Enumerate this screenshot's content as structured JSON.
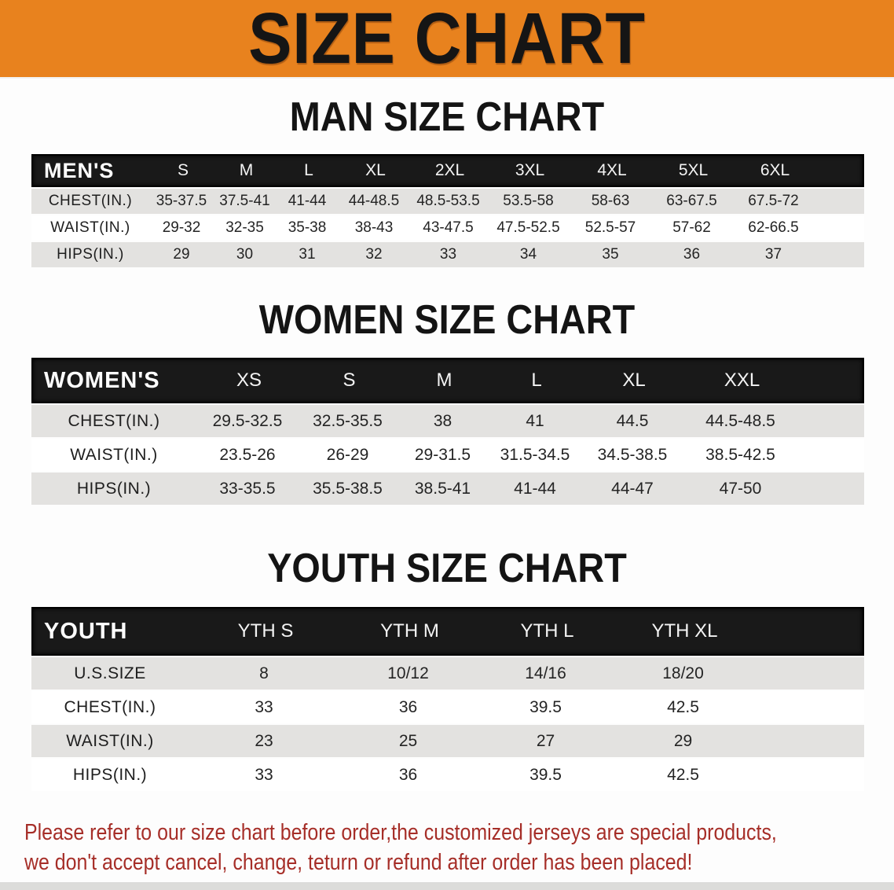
{
  "banner": {
    "title": "SIZE CHART"
  },
  "colors": {
    "banner_bg": "#E8821E",
    "table_header_bg": "#191919",
    "row_stripe": "#E3E2E0",
    "disclaimer_text": "#A62E28"
  },
  "tables": {
    "men": {
      "heading": "MAN SIZE CHART",
      "label": "MEN'S",
      "sizes": [
        "S",
        "M",
        "L",
        "XL",
        "2XL",
        "3XL",
        "4XL",
        "5XL",
        "6XL"
      ],
      "rows": [
        {
          "label": "CHEST(IN.)",
          "values": [
            "35-37.5",
            "37.5-41",
            "41-44",
            "44-48.5",
            "48.5-53.5",
            "53.5-58",
            "58-63",
            "63-67.5",
            "67.5-72"
          ]
        },
        {
          "label": "WAIST(IN.)",
          "values": [
            "29-32",
            "32-35",
            "35-38",
            "38-43",
            "43-47.5",
            "47.5-52.5",
            "52.5-57",
            "57-62",
            "62-66.5"
          ]
        },
        {
          "label": "HIPS(IN.)",
          "values": [
            "29",
            "30",
            "31",
            "32",
            "33",
            "34",
            "35",
            "36",
            "37"
          ]
        }
      ]
    },
    "women": {
      "heading": "WOMEN SIZE CHART",
      "label": "WOMEN'S",
      "sizes": [
        "XS",
        "S",
        "M",
        "L",
        "XL",
        "XXL"
      ],
      "rows": [
        {
          "label": "CHEST(IN.)",
          "values": [
            "29.5-32.5",
            "32.5-35.5",
            "38",
            "41",
            "44.5",
            "44.5-48.5"
          ]
        },
        {
          "label": "WAIST(IN.)",
          "values": [
            "23.5-26",
            "26-29",
            "29-31.5",
            "31.5-34.5",
            "34.5-38.5",
            "38.5-42.5"
          ]
        },
        {
          "label": "HIPS(IN.)",
          "values": [
            "33-35.5",
            "35.5-38.5",
            "38.5-41",
            "41-44",
            "44-47",
            "47-50"
          ]
        }
      ]
    },
    "youth": {
      "heading": "YOUTH SIZE CHART",
      "label": "YOUTH",
      "sizes": [
        "YTH S",
        "YTH M",
        "YTH L",
        "YTH XL"
      ],
      "rows": [
        {
          "label": "U.S.SIZE",
          "values": [
            "8",
            "10/12",
            "14/16",
            "18/20"
          ]
        },
        {
          "label": "CHEST(IN.)",
          "values": [
            "33",
            "36",
            "39.5",
            "42.5"
          ]
        },
        {
          "label": "WAIST(IN.)",
          "values": [
            "23",
            "25",
            "27",
            "29"
          ]
        },
        {
          "label": "HIPS(IN.)",
          "values": [
            "33",
            "36",
            "39.5",
            "42.5"
          ]
        }
      ]
    }
  },
  "disclaimer": {
    "line1": "Please refer to our size chart before order,the customized jerseys are special products,",
    "line2": "we don't accept cancel, change, teturn or refund after order has been placed!"
  }
}
